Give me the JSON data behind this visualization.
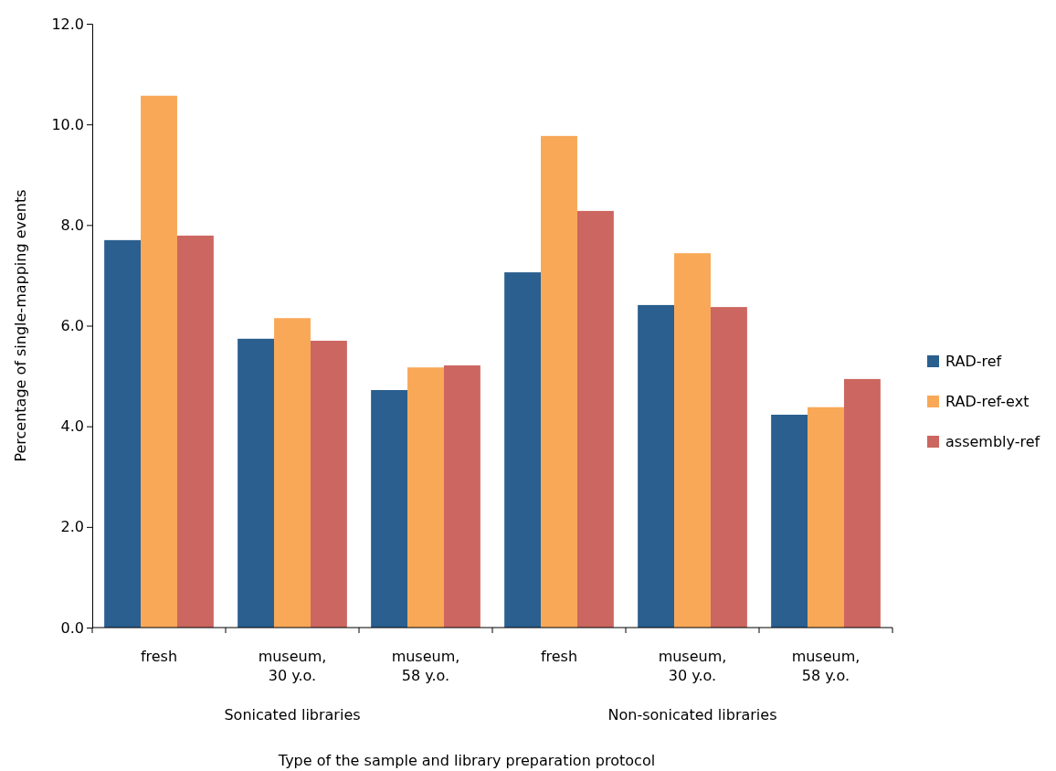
{
  "chart_data": {
    "type": "bar",
    "xlabel": "Type of the sample and library preparation protocol",
    "ylabel": "Percentage of single-mapping events",
    "categories": [
      "fresh",
      "museum, 30 y.o.",
      "museum, 58 y.o.",
      "fresh",
      "museum, 30 y.o.",
      "museum, 58 y.o."
    ],
    "series": [
      {
        "name": "RAD-ref",
        "color": "#2a5f8f",
        "values": [
          7.7,
          5.74,
          4.72,
          7.06,
          6.41,
          4.23
        ]
      },
      {
        "name": "RAD-ref-ext",
        "color": "#f9a857",
        "values": [
          10.57,
          6.15,
          5.17,
          9.77,
          7.44,
          4.38
        ]
      },
      {
        "name": "assembly-ref",
        "color": "#cc6660",
        "values": [
          7.79,
          5.7,
          5.21,
          8.28,
          6.37,
          4.94
        ]
      }
    ],
    "annotations": [
      "Sonicated libraries",
      "Non-sonicated libraries"
    ],
    "ylim": [
      0,
      12
    ],
    "yticks": [
      {
        "value": 0,
        "label": "0.0"
      },
      {
        "value": 2,
        "label": "2.0"
      },
      {
        "value": 4,
        "label": "4.0"
      },
      {
        "value": 6,
        "label": "6.0"
      },
      {
        "value": 8,
        "label": "8.0"
      },
      {
        "value": 10,
        "label": "10.0"
      },
      {
        "value": 12,
        "label": "12.0"
      }
    ],
    "grid": false,
    "legend": "right"
  }
}
